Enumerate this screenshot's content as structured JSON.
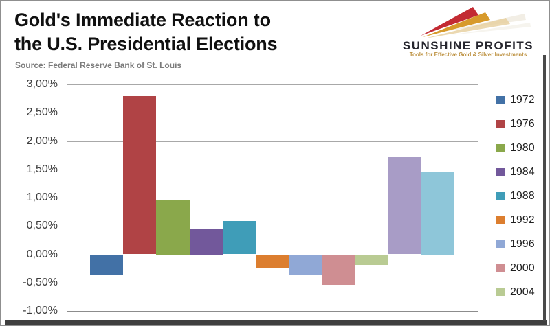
{
  "header": {
    "title_line1": "Gold's Immediate Reaction to",
    "title_line2": "the U.S. Presidential Elections",
    "source": "Source: Federal Reserve Bank of St. Louis"
  },
  "logo": {
    "name": "SUNSHINE PROFITS",
    "tagline": "Tools for Effective Gold & Silver Investments",
    "colors": {
      "ray_red": "#c32b33",
      "ray_gold": "#d79a2b",
      "ray_tan": "#e6ce9c",
      "text": "#26262e",
      "tagline": "#bd9140"
    }
  },
  "chart_data": {
    "type": "bar",
    "title": "Gold's Immediate Reaction to the U.S. Presidential Elections",
    "xlabel": "",
    "ylabel": "",
    "unit": "%",
    "ylim": [
      -1.0,
      3.0
    ],
    "grid": true,
    "legend_position": "right",
    "decimal_separator": ",",
    "y_ticks": [
      {
        "value": 3.0,
        "label": "3,00%"
      },
      {
        "value": 2.5,
        "label": "2,50%"
      },
      {
        "value": 2.0,
        "label": "2,00%"
      },
      {
        "value": 1.5,
        "label": "1,50%"
      },
      {
        "value": 1.0,
        "label": "1,00%"
      },
      {
        "value": 0.5,
        "label": "0,50%"
      },
      {
        "value": 0.0,
        "label": "0,00%"
      },
      {
        "value": -0.5,
        "label": "-0,50%"
      },
      {
        "value": -1.0,
        "label": "-1,00%"
      }
    ],
    "series": [
      {
        "label": "1972",
        "value": -0.36,
        "color": "#4271a6"
      },
      {
        "label": "1976",
        "value": 2.79,
        "color": "#b04345"
      },
      {
        "label": "1980",
        "value": 0.95,
        "color": "#8aa84b"
      },
      {
        "label": "1984",
        "value": 0.45,
        "color": "#72589b"
      },
      {
        "label": "1988",
        "value": 0.59,
        "color": "#3f9db8"
      },
      {
        "label": "1992",
        "value": -0.24,
        "color": "#dc7e2f"
      },
      {
        "label": "1996",
        "value": -0.34,
        "color": "#90a8d6"
      },
      {
        "label": "2000",
        "value": -0.53,
        "color": "#cf8e92"
      },
      {
        "label": "2004",
        "value": -0.17,
        "color": "#b9cb93"
      },
      {
        "label": "",
        "value": 1.71,
        "color": "#a89cc6"
      },
      {
        "label": "",
        "value": 1.45,
        "color": "#8ec6d9"
      }
    ]
  }
}
